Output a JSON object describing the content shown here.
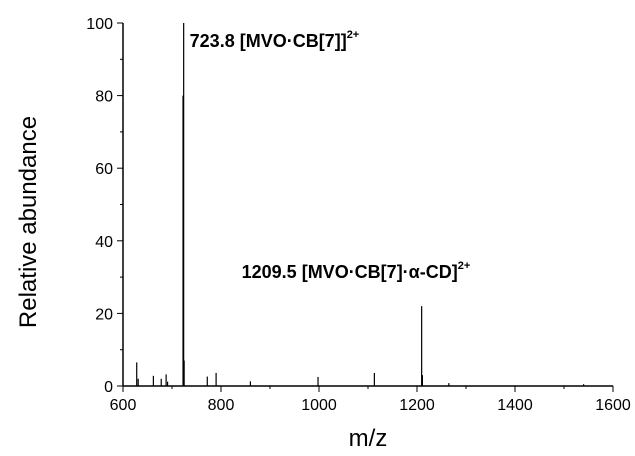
{
  "chart_data": {
    "type": "bar",
    "title": "",
    "xlabel": "m/z",
    "ylabel": "Relative abundance",
    "xlim": [
      600,
      1600
    ],
    "ylim": [
      0,
      100
    ],
    "xticks": [
      "600",
      "800",
      "1000",
      "1200",
      "1400",
      "1600"
    ],
    "yticks": [
      "0",
      "20",
      "40",
      "60",
      "80",
      "100"
    ],
    "grid": false,
    "legend": "none",
    "line_color": "#000000",
    "peaks": [
      {
        "x": 628,
        "y": 6.5
      },
      {
        "x": 631,
        "y": 2.0
      },
      {
        "x": 662,
        "y": 2.8
      },
      {
        "x": 678,
        "y": 2.0
      },
      {
        "x": 688,
        "y": 3.2
      },
      {
        "x": 691,
        "y": 1.2
      },
      {
        "x": 722.5,
        "y": 80.0
      },
      {
        "x": 723.8,
        "y": 100
      },
      {
        "x": 724.8,
        "y": 7.0
      },
      {
        "x": 772,
        "y": 2.6
      },
      {
        "x": 790,
        "y": 3.6
      },
      {
        "x": 860,
        "y": 1.3
      },
      {
        "x": 998,
        "y": 2.5
      },
      {
        "x": 1113,
        "y": 3.6
      },
      {
        "x": 1209.5,
        "y": 22.0
      },
      {
        "x": 1211,
        "y": 3.0
      },
      {
        "x": 1265,
        "y": 0.8
      },
      {
        "x": 1540,
        "y": 0.5
      }
    ],
    "annotations": [
      {
        "x": 723.8,
        "y": 100,
        "text": "723.8 [MVO·CB[7]]",
        "sup": "2+"
      },
      {
        "x": 1209.5,
        "y": 22,
        "text": "1209.5 [MVO·CB[7]·α-CD]",
        "sup": "2+"
      }
    ]
  }
}
